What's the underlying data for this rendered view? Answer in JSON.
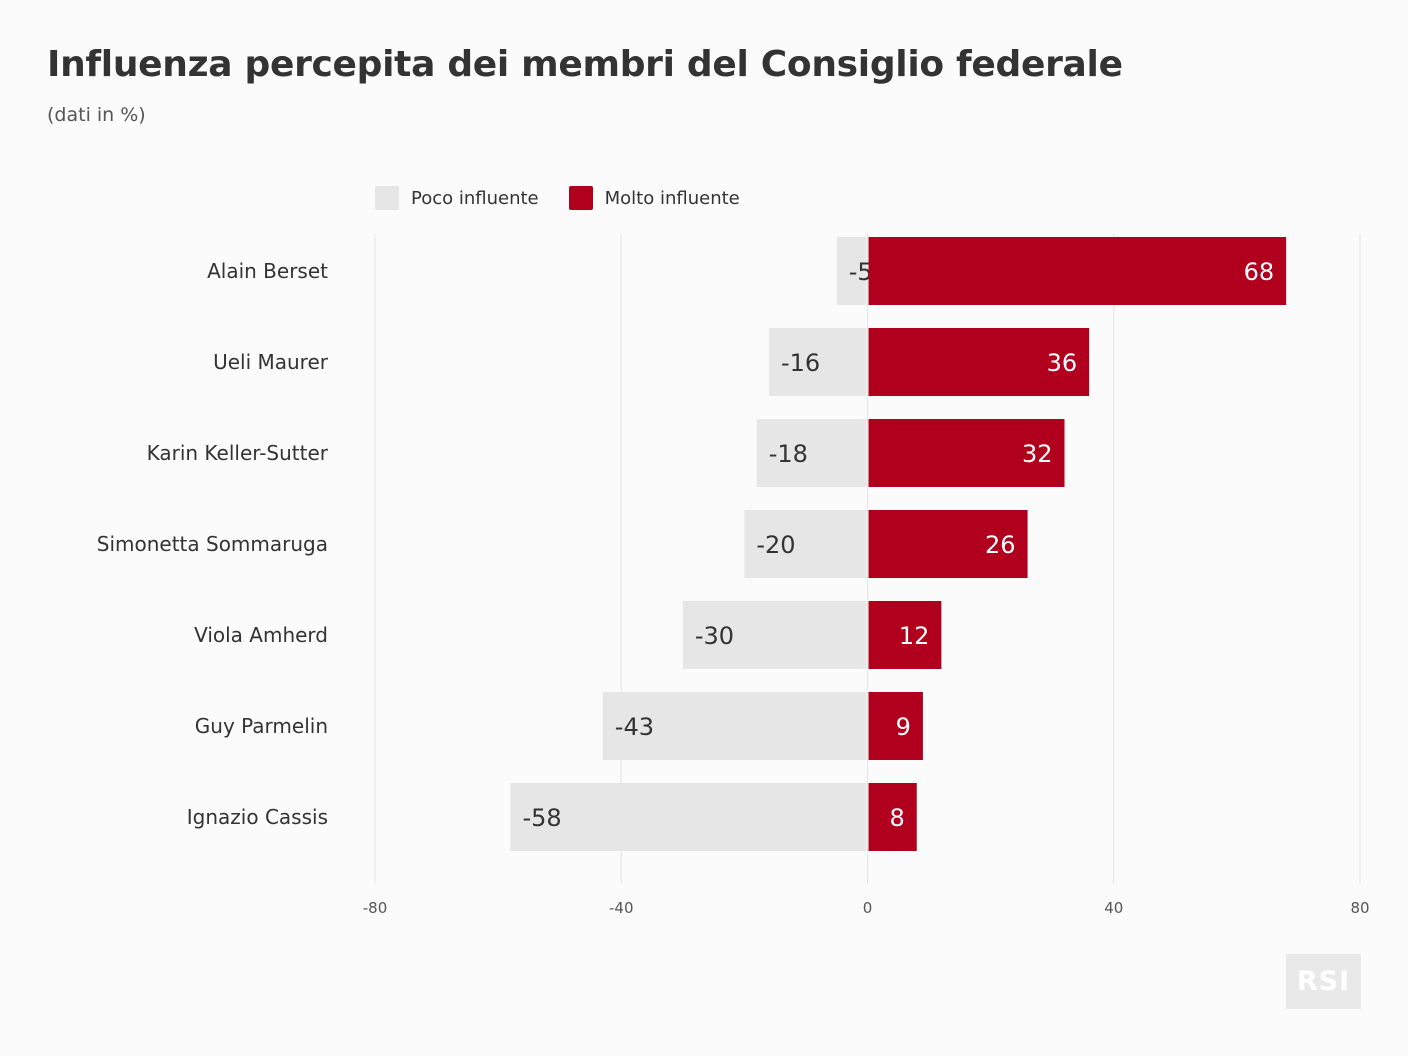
{
  "title": "Influenza percepita dei membri del Consiglio federale",
  "subtitle": "(dati in %)",
  "legend": [
    {
      "label": "Poco influente",
      "color": "#e6e6e6"
    },
    {
      "label": "Molto influente",
      "color": "#b0001e"
    }
  ],
  "logo_text": "RSI",
  "chart_data": {
    "type": "bar",
    "orientation": "horizontal-diverging",
    "categories": [
      "Alain Berset",
      "Ueli Maurer",
      "Karin Keller-Sutter",
      "Simonetta Sommaruga",
      "Viola Amherd",
      "Guy Parmelin",
      "Ignazio Cassis"
    ],
    "series": [
      {
        "name": "Poco influente",
        "values": [
          -5,
          -16,
          -18,
          -20,
          -30,
          -43,
          -58
        ],
        "color": "#e6e6e6"
      },
      {
        "name": "Molto influente",
        "values": [
          68,
          36,
          32,
          26,
          12,
          9,
          8
        ],
        "color": "#b0001e"
      }
    ],
    "xlim": [
      -80,
      80
    ],
    "xticks": [
      -80,
      -40,
      0,
      40,
      80
    ],
    "grid": true,
    "legend_position": "top"
  }
}
